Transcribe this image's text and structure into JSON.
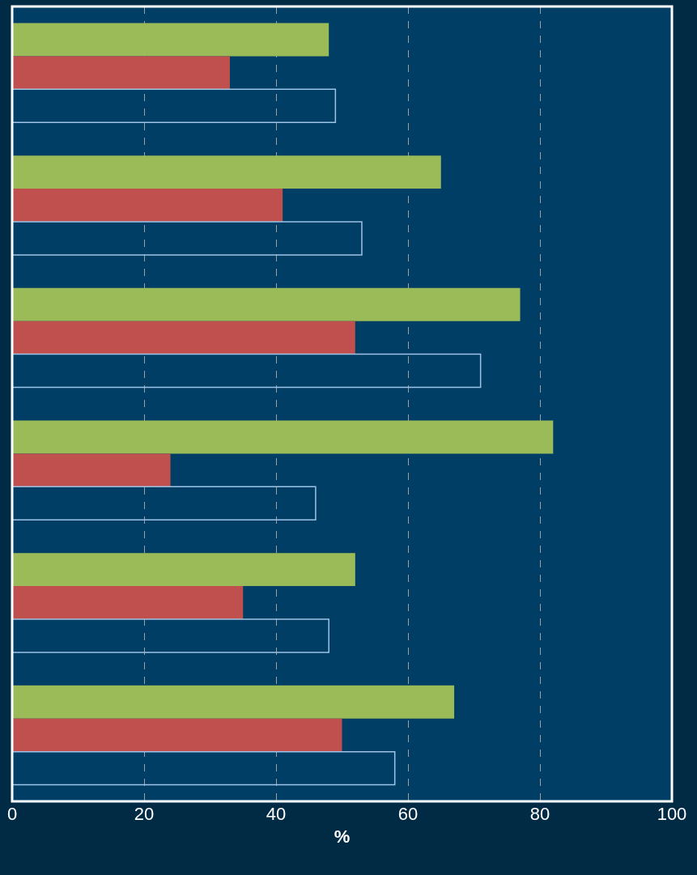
{
  "chart_data": {
    "type": "bar",
    "orientation": "horizontal",
    "xlabel": "%",
    "categories": [
      null,
      null,
      null,
      null,
      null,
      null
    ],
    "series": [
      {
        "color": "#9bbb59",
        "values": [
          48,
          65,
          77,
          82,
          52,
          67
        ]
      },
      {
        "color": "#c0504d",
        "values": [
          33,
          41,
          52,
          24,
          35,
          50
        ]
      },
      {
        "color": "#9dc3e6",
        "values": [
          49,
          53,
          71,
          46,
          48,
          58
        ]
      }
    ],
    "xlim": [
      0,
      100
    ],
    "xticks": [
      0,
      20,
      40,
      60,
      80,
      100
    ],
    "grid": "x",
    "tick_labels": "x"
  }
}
